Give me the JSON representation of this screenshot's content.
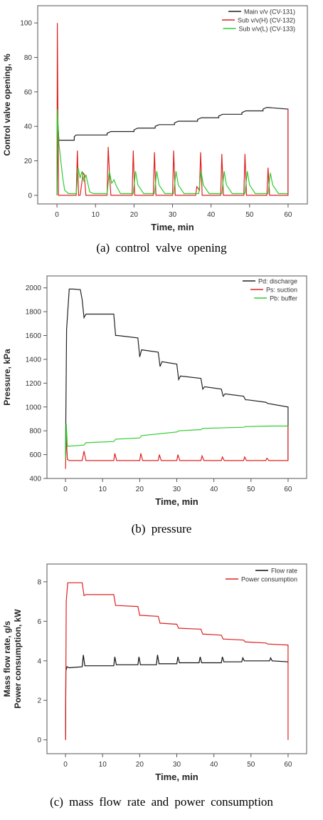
{
  "chart_data": [
    {
      "type": "line",
      "caption": "(a)  control  valve  opening",
      "xlabel": "Time, min",
      "ylabel": "Control valve opening, %",
      "xlim": [
        -5,
        65
      ],
      "ylim": [
        -5,
        110
      ],
      "xticks": [
        0,
        10,
        20,
        30,
        40,
        50,
        60
      ],
      "yticks": [
        0,
        20,
        40,
        60,
        80,
        100
      ],
      "legend_position": "top-right",
      "grid": false,
      "series": [
        {
          "name": "Main v/v (CV-131)",
          "color": "#222222",
          "x": [
            0,
            0.3,
            0.5,
            4.5,
            4.5,
            5,
            13,
            13,
            14,
            20,
            20,
            21,
            25.5,
            25.5,
            26.5,
            30.5,
            30.5,
            31.5,
            36.5,
            36.5,
            37.5,
            42,
            42,
            43,
            48,
            48,
            49,
            53.5,
            53.5,
            54.5,
            60,
            60,
            60
          ],
          "y": [
            0,
            40,
            32,
            32,
            34,
            35,
            35,
            36,
            37,
            37,
            38,
            39,
            39,
            40,
            41,
            41,
            42,
            43,
            43,
            44,
            45,
            45,
            46,
            47,
            47,
            48,
            49,
            49,
            50,
            51,
            50,
            50,
            0
          ]
        },
        {
          "name": "Sub v/v(H) (CV-132)",
          "color": "#e02020",
          "x": [
            0,
            0.1,
            0.4,
            5,
            5.3,
            5.6,
            6,
            6.8,
            7.1,
            7.5,
            13,
            13.3,
            13.7,
            14,
            19.5,
            19.8,
            20.2,
            25,
            25.3,
            25.7,
            30,
            30.3,
            30.7,
            36,
            36.3,
            37,
            37.3,
            37.7,
            42.5,
            42.8,
            43.2,
            48.5,
            48.8,
            49.2,
            54.5,
            54.8,
            55.2,
            60,
            60,
            60
          ],
          "y": [
            0,
            100,
            0,
            0,
            26,
            0,
            0,
            13,
            12,
            0,
            0,
            28,
            10,
            0,
            0,
            26,
            0,
            0,
            25,
            0,
            0,
            26,
            0,
            0,
            5,
            3,
            25,
            0,
            0,
            24,
            0,
            0,
            24,
            0,
            0,
            16,
            0,
            0,
            50,
            0
          ]
        },
        {
          "name": "Sub v/v(L) (CV-133)",
          "color": "#2ecc2e",
          "x": [
            0,
            0.1,
            0.5,
            1,
            1.5,
            2,
            3,
            4,
            5,
            5.5,
            6,
            6.5,
            7,
            7.5,
            8.5,
            9.5,
            13,
            13.6,
            14.2,
            14.8,
            15.5,
            16.5,
            19.8,
            20.4,
            21,
            22.5,
            25.3,
            25.9,
            26.5,
            28,
            30.3,
            30.9,
            31.5,
            33,
            36.8,
            37.4,
            38,
            39.5,
            42.8,
            43.4,
            44,
            45.5,
            48.8,
            49.4,
            50,
            51.5,
            54.8,
            55.4,
            56,
            57.5,
            60
          ],
          "y": [
            0,
            50,
            30,
            20,
            10,
            3,
            1,
            1,
            1,
            16,
            10,
            14,
            8,
            12,
            2,
            1,
            1,
            14,
            7,
            9,
            5,
            1,
            1,
            14,
            6,
            1,
            1,
            14,
            6,
            1,
            1,
            14,
            6,
            1,
            1,
            14,
            6,
            1,
            1,
            14,
            6,
            1,
            1,
            14,
            6,
            1,
            1,
            13,
            6,
            1,
            1
          ]
        }
      ]
    },
    {
      "type": "line",
      "caption": "(b)  pressure",
      "xlabel": "Time, min",
      "ylabel": "Pressure, kPa",
      "xlim": [
        -5,
        65
      ],
      "ylim": [
        400,
        2100
      ],
      "xticks": [
        0,
        10,
        20,
        30,
        40,
        50,
        60
      ],
      "yticks": [
        400,
        600,
        800,
        1000,
        1200,
        1400,
        1600,
        1800,
        2000
      ],
      "legend_position": "top-right",
      "grid": false,
      "series": [
        {
          "name": "Pd: discharge",
          "color": "#222222",
          "x": [
            0,
            0.3,
            1,
            2,
            4,
            4.5,
            5,
            5.5,
            13,
            13.5,
            14,
            19.5,
            20,
            20.5,
            25,
            25.5,
            26,
            30,
            30.5,
            31,
            36.5,
            37,
            37.5,
            42,
            42.5,
            43,
            48,
            48.5,
            49,
            54,
            54.5,
            60,
            60
          ],
          "y": [
            600,
            1650,
            1990,
            1990,
            1985,
            1900,
            1750,
            1780,
            1780,
            1600,
            1600,
            1580,
            1420,
            1480,
            1460,
            1340,
            1380,
            1360,
            1230,
            1260,
            1240,
            1150,
            1170,
            1150,
            1090,
            1110,
            1090,
            1060,
            1060,
            1040,
            1030,
            1000,
            560
          ]
        },
        {
          "name": "Ps: suction",
          "color": "#e02020",
          "x": [
            0,
            0.2,
            0.5,
            1,
            4.5,
            5,
            5.5,
            13,
            13.3,
            13.8,
            20,
            20.3,
            20.8,
            25,
            25.3,
            25.8,
            30,
            30.3,
            30.8,
            36.5,
            36.8,
            37.3,
            42,
            42.3,
            42.8,
            48,
            48.3,
            48.8,
            54,
            54.3,
            54.8,
            60,
            60
          ],
          "y": [
            480,
            760,
            560,
            550,
            550,
            630,
            550,
            550,
            610,
            550,
            550,
            610,
            550,
            550,
            600,
            550,
            550,
            600,
            550,
            550,
            590,
            550,
            550,
            580,
            550,
            550,
            580,
            550,
            550,
            570,
            550,
            550,
            840
          ]
        },
        {
          "name": "Pb: buffer",
          "color": "#2ecc2e",
          "x": [
            0,
            0.2,
            0.5,
            5,
            5.5,
            13,
            13.5,
            20,
            20.5,
            30,
            30.5,
            36.5,
            37,
            48,
            48.5,
            55,
            60
          ],
          "y": [
            560,
            860,
            670,
            680,
            700,
            710,
            730,
            740,
            760,
            790,
            800,
            810,
            820,
            830,
            835,
            840,
            840
          ]
        }
      ]
    },
    {
      "type": "line",
      "caption": "(c)  mass  flow  rate  and  power  consumption",
      "xlabel": "Time, min",
      "ylabel": "Mass flow rate, g/s\nPower consumption, kW",
      "xlim": [
        -5,
        65
      ],
      "ylim": [
        -0.7,
        8.9
      ],
      "xticks": [
        0,
        10,
        20,
        30,
        40,
        50,
        60
      ],
      "yticks": [
        0,
        2,
        4,
        6,
        8
      ],
      "legend_position": "top-right",
      "grid": false,
      "series": [
        {
          "name": "Flow rate",
          "color": "#111111",
          "x": [
            0,
            0.1,
            0.4,
            1,
            4.5,
            4.8,
            5.2,
            13,
            13.3,
            13.7,
            19.5,
            19.8,
            20.2,
            24.5,
            24.8,
            25.2,
            30,
            30.3,
            30.7,
            36,
            36.3,
            36.7,
            42,
            42.3,
            42.7,
            47.5,
            47.8,
            48.2,
            55,
            55.3,
            55.7,
            60,
            60
          ],
          "y": [
            0,
            3.5,
            3.7,
            3.65,
            3.7,
            4.3,
            3.75,
            3.75,
            4.2,
            3.8,
            3.8,
            4.2,
            3.8,
            3.8,
            4.3,
            3.85,
            3.85,
            4.2,
            3.9,
            3.9,
            4.2,
            3.9,
            3.9,
            4.2,
            3.95,
            3.95,
            4.15,
            4.0,
            4.0,
            4.15,
            4.0,
            3.95,
            3.9
          ]
        },
        {
          "name": "Power consumption",
          "color": "#e02020",
          "x": [
            0,
            0.2,
            0.6,
            1,
            4.5,
            5,
            5.5,
            13,
            13.5,
            14,
            19.5,
            20,
            20.5,
            25,
            25.5,
            26,
            30,
            30.5,
            31,
            36.5,
            37,
            37.5,
            42,
            42.5,
            43,
            48,
            48.5,
            49,
            54,
            54.5,
            60,
            60
          ],
          "y": [
            0,
            7.0,
            7.95,
            7.95,
            7.95,
            7.3,
            7.35,
            7.35,
            6.8,
            6.8,
            6.75,
            6.3,
            6.3,
            6.25,
            5.9,
            5.9,
            5.85,
            5.65,
            5.65,
            5.6,
            5.35,
            5.35,
            5.3,
            5.1,
            5.1,
            5.05,
            4.95,
            4.95,
            4.9,
            4.85,
            4.8,
            0
          ]
        }
      ]
    }
  ]
}
